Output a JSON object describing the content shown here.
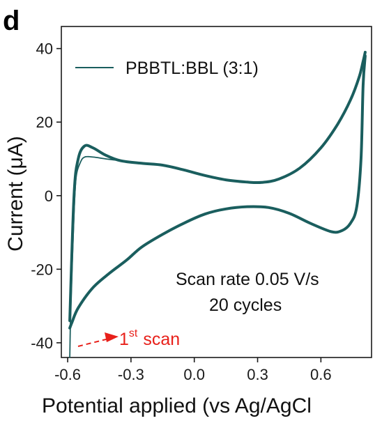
{
  "panel_label": "d",
  "colors": {
    "series": "#1a5e5e",
    "annotation": "#e8201a",
    "axis": "#1a1a1a"
  },
  "chart_data": {
    "type": "line",
    "title": "",
    "xlabel": "Potential applied (vs Ag/AgCl",
    "ylabel": "Current (μA)",
    "xlim": [
      -0.63,
      0.84
    ],
    "ylim": [
      -44,
      46
    ],
    "xticks": [
      -0.6,
      -0.3,
      0.0,
      0.3,
      0.6
    ],
    "xtick_labels": [
      "-0.6",
      "-0.3",
      "0.0",
      "0.3",
      "0.6"
    ],
    "yticks": [
      -40,
      -20,
      0,
      20,
      40
    ],
    "ytick_labels": [
      "-40",
      "-20",
      "0",
      "20",
      "40"
    ],
    "grid": false,
    "legend_position": "top-left",
    "series": [
      {
        "name": "PBBTL:BBL (3:1)",
        "color": "#1a5e5e",
        "anodic": {
          "x": [
            -0.59,
            -0.57,
            -0.55,
            -0.52,
            -0.48,
            -0.42,
            -0.35,
            -0.25,
            -0.15,
            -0.05,
            0.05,
            0.15,
            0.25,
            0.32,
            0.4,
            0.5,
            0.6,
            0.68,
            0.74,
            0.78,
            0.8,
            0.81
          ],
          "y": [
            -34,
            0,
            10,
            13.5,
            13,
            11,
            9.5,
            8.8,
            8.3,
            7,
            5.5,
            4.3,
            3.7,
            3.6,
            4.5,
            7.5,
            13,
            19.5,
            26,
            32,
            36.5,
            39
          ]
        },
        "cathodic": {
          "x": [
            0.81,
            0.8,
            0.79,
            0.77,
            0.74,
            0.7,
            0.65,
            0.55,
            0.45,
            0.35,
            0.25,
            0.15,
            0.05,
            -0.05,
            -0.15,
            -0.25,
            -0.32,
            -0.4,
            -0.48,
            -0.55,
            -0.58,
            -0.59
          ],
          "y": [
            38,
            30,
            10,
            -3,
            -7.5,
            -9.5,
            -9.8,
            -7.5,
            -4.8,
            -3.2,
            -3,
            -3.6,
            -5,
            -7.5,
            -10.5,
            -14,
            -17.5,
            -21,
            -25,
            -30.5,
            -34.5,
            -36
          ]
        },
        "first_scan": {
          "x": [
            -0.59,
            -0.585,
            -0.57,
            -0.56,
            -0.54,
            -0.52,
            -0.48,
            -0.42,
            -0.35
          ],
          "y": [
            -44,
            -30,
            -5,
            5,
            9,
            10.5,
            10.5,
            10,
            9.5
          ]
        }
      }
    ],
    "annotations": {
      "scan_rate": "Scan rate 0.05 V/s",
      "cycles": "20 cycles",
      "first_scan_base": "1",
      "first_scan_sup": "st",
      "first_scan_rest": "scan"
    }
  }
}
